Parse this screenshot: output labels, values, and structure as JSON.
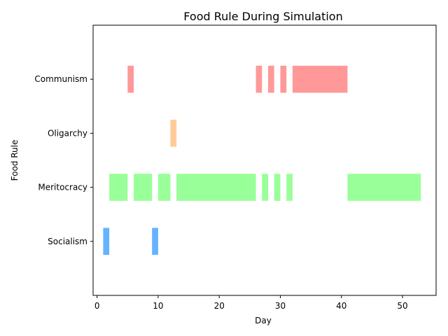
{
  "chart_data": {
    "type": "bar",
    "orientation": "horizontal-broken",
    "title": "Food Rule During Simulation",
    "xlabel": "Day",
    "ylabel": "Food Rule",
    "xlim": [
      -0.65,
      55.5
    ],
    "xticks": [
      0,
      10,
      20,
      30,
      40,
      50
    ],
    "categories": [
      "Socialism",
      "Meritocracy",
      "Oligarchy",
      "Communism"
    ],
    "grid": false,
    "series": [
      {
        "category": "Socialism",
        "color": "#66b3ff",
        "intervals": [
          [
            1,
            2
          ],
          [
            9,
            10
          ]
        ]
      },
      {
        "category": "Meritocracy",
        "color": "#99ff99",
        "intervals": [
          [
            2,
            5
          ],
          [
            6,
            9
          ],
          [
            10,
            12
          ],
          [
            13,
            26
          ],
          [
            27,
            28
          ],
          [
            29,
            30
          ],
          [
            31,
            32
          ],
          [
            41,
            53
          ]
        ]
      },
      {
        "category": "Oligarchy",
        "color": "#ffcc99",
        "intervals": [
          [
            12,
            13
          ]
        ]
      },
      {
        "category": "Communism",
        "color": "#ff9999",
        "intervals": [
          [
            5,
            6
          ],
          [
            26,
            27
          ],
          [
            28,
            29
          ],
          [
            30,
            31
          ],
          [
            32,
            41
          ]
        ]
      }
    ]
  }
}
